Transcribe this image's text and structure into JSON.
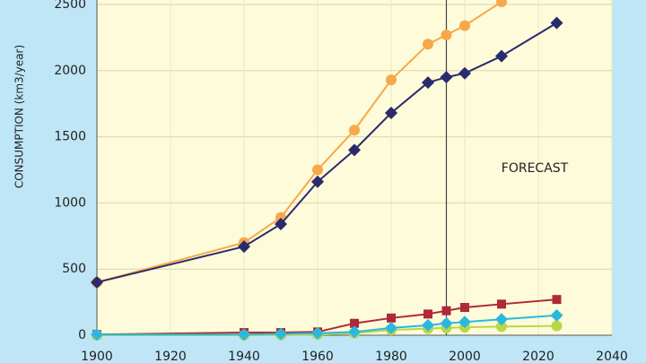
{
  "chart_data": {
    "type": "line",
    "y_label": "CONSUMPTION (km3/year)",
    "annotation": "FORECAST",
    "forecast_x": 1995,
    "xlim": [
      1900,
      2040
    ],
    "xticks": [
      1900,
      1920,
      1940,
      1960,
      1980,
      2000,
      2020,
      2040
    ],
    "ylim": [
      0,
      2500
    ],
    "yticks": [
      0,
      500,
      1000,
      1500,
      2000,
      2500
    ],
    "grid": true,
    "series": [
      {
        "color": "#f7a84a",
        "marker": "circle",
        "x": [
          1900,
          1940,
          1950,
          1960,
          1970,
          1980,
          1990,
          1995,
          2000,
          2010
        ],
        "values": [
          400,
          700,
          890,
          1250,
          1550,
          1930,
          2200,
          2270,
          2340,
          2520
        ]
      },
      {
        "color": "#2a2a6e",
        "marker": "diamond",
        "x": [
          1900,
          1940,
          1950,
          1960,
          1970,
          1980,
          1990,
          1995,
          2000,
          2010,
          2025
        ],
        "values": [
          400,
          670,
          840,
          1160,
          1400,
          1680,
          1910,
          1950,
          1980,
          2110,
          2360
        ]
      },
      {
        "color": "#b0283a",
        "marker": "square",
        "x": [
          1900,
          1940,
          1950,
          1960,
          1970,
          1980,
          1990,
          1995,
          2000,
          2010,
          2025
        ],
        "values": [
          5,
          20,
          20,
          25,
          90,
          130,
          160,
          185,
          210,
          235,
          270
        ]
      },
      {
        "color": "#b8d84a",
        "marker": "circle",
        "x": [
          1900,
          1940,
          1950,
          1960,
          1970,
          1980,
          1990,
          1995,
          2000,
          2010,
          2025
        ],
        "values": [
          0,
          0,
          2,
          5,
          15,
          40,
          50,
          55,
          60,
          65,
          70
        ]
      },
      {
        "color": "#2ab8e0",
        "marker": "diamond",
        "x": [
          1900,
          1940,
          1950,
          1960,
          1970,
          1980,
          1990,
          1995,
          2000,
          2010,
          2025
        ],
        "values": [
          5,
          5,
          10,
          15,
          25,
          55,
          75,
          90,
          100,
          120,
          150
        ]
      }
    ]
  }
}
